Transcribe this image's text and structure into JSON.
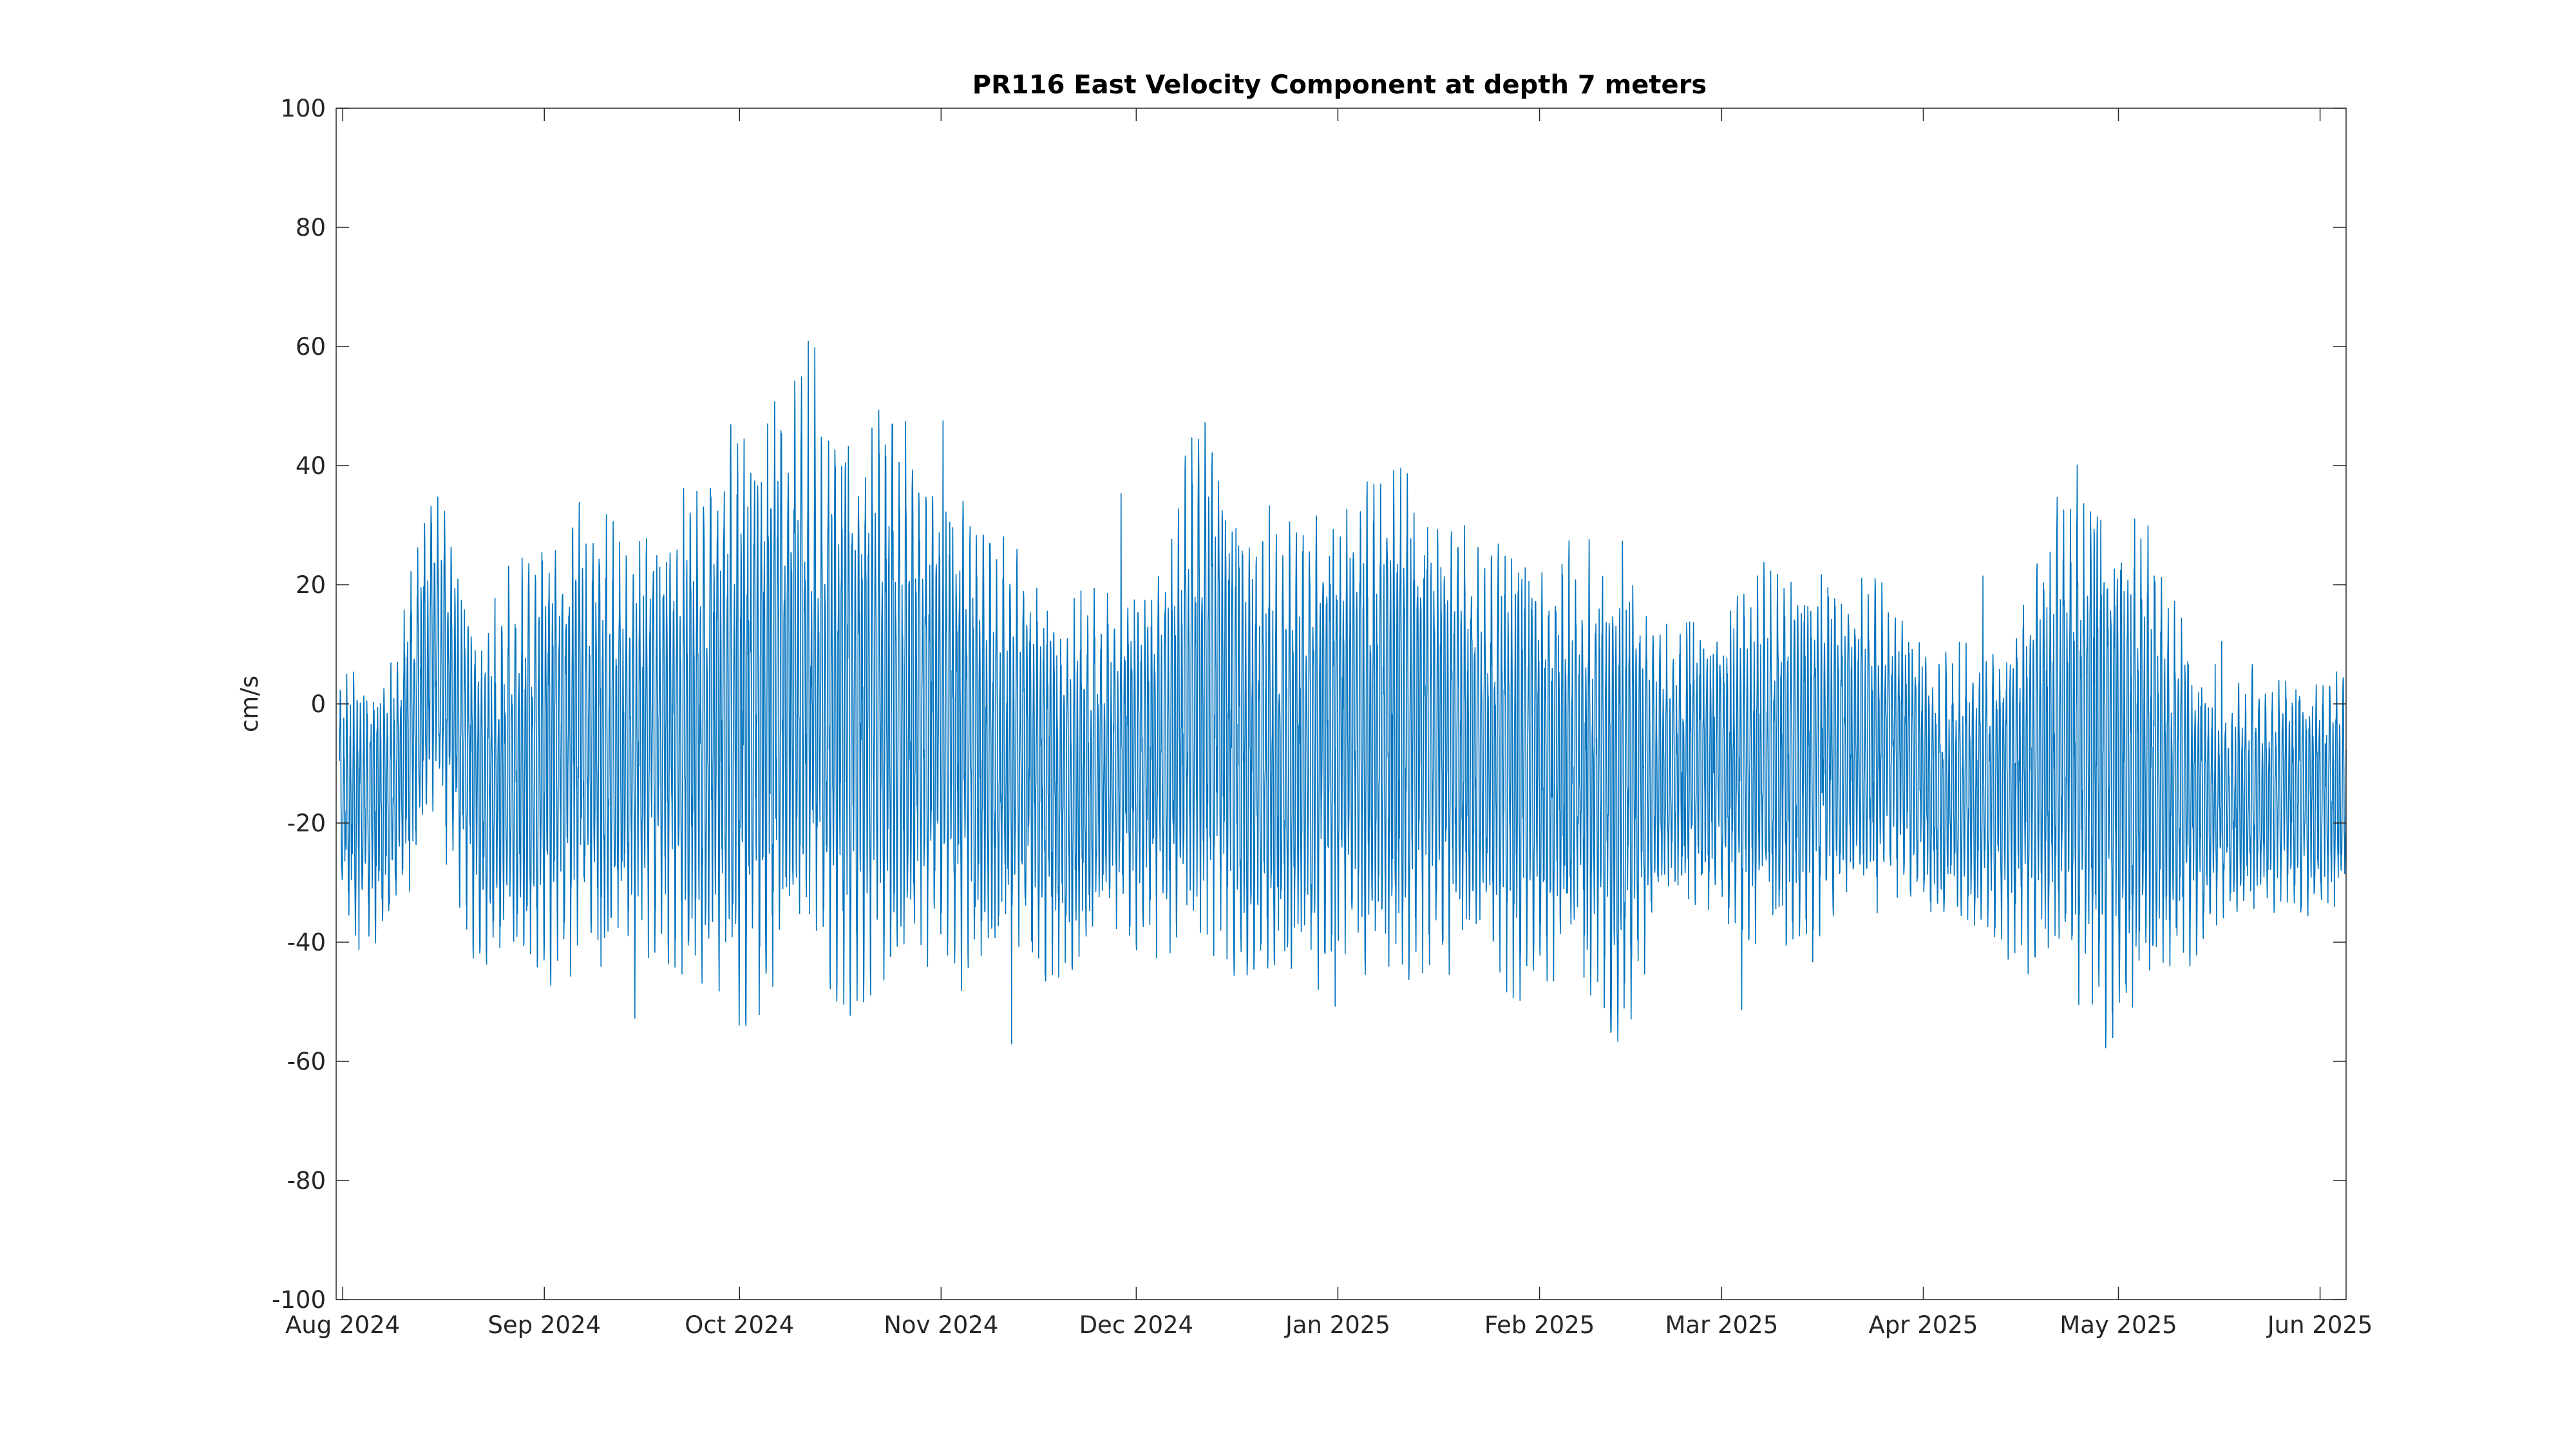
{
  "chart_data": {
    "type": "line",
    "title": "PR116 East Velocity Component at depth 7 meters",
    "xlabel": "",
    "ylabel": "cm/s",
    "xlim": [
      "2024-07-31",
      "2025-06-05"
    ],
    "ylim": [
      -100,
      100
    ],
    "grid": false,
    "legend": "none",
    "line_color": "#0072BD",
    "y_ticks": [
      -100,
      -80,
      -60,
      -40,
      -20,
      0,
      20,
      40,
      60,
      80,
      100
    ],
    "y_tick_labels": [
      "-100",
      "-80",
      "-60",
      "-40",
      "-20",
      "0",
      "20",
      "40",
      "60",
      "80",
      "100"
    ],
    "x_ticks": [
      "2024-08-01",
      "2024-09-01",
      "2024-10-01",
      "2024-11-01",
      "2024-12-01",
      "2025-01-01",
      "2025-02-01",
      "2025-03-01",
      "2025-04-01",
      "2025-05-01",
      "2025-06-01"
    ],
    "x_tick_labels": [
      "Aug 2024",
      "Sep 2024",
      "Oct 2024",
      "Nov 2024",
      "Dec 2024",
      "Jan 2025",
      "Feb 2025",
      "Mar 2025",
      "Apr 2025",
      "May 2025",
      "Jun 2025"
    ],
    "series": [
      {
        "x": [
          "2024-08-01",
          "2024-08-08",
          "2024-08-15",
          "2024-08-22",
          "2024-08-29",
          "2024-09-05",
          "2024-09-12",
          "2024-09-19",
          "2024-09-26",
          "2024-10-03",
          "2024-10-10",
          "2024-10-17",
          "2024-10-24",
          "2024-10-31",
          "2024-11-07",
          "2024-11-14",
          "2024-11-21",
          "2024-11-28",
          "2024-12-05",
          "2024-12-12",
          "2024-12-19",
          "2024-12-26",
          "2025-01-02",
          "2025-01-09",
          "2025-01-16",
          "2025-01-23",
          "2025-01-30",
          "2025-02-06",
          "2025-02-13",
          "2025-02-20",
          "2025-02-27",
          "2025-03-06",
          "2025-03-13",
          "2025-03-20",
          "2025-03-27",
          "2025-04-03",
          "2025-04-10",
          "2025-04-17",
          "2025-04-24",
          "2025-05-01",
          "2025-05-08",
          "2025-05-15",
          "2025-05-22",
          "2025-05-29",
          "2025-06-05"
        ],
        "mean": [
          -15,
          -18,
          10,
          -15,
          -10,
          -5,
          -8,
          -5,
          -5,
          0,
          5,
          0,
          0,
          -2,
          -8,
          -10,
          -15,
          -10,
          -8,
          5,
          -10,
          -8,
          -5,
          -3,
          -5,
          -8,
          -10,
          -10,
          -15,
          -12,
          -10,
          -10,
          -8,
          -8,
          -5,
          -15,
          -15,
          -12,
          -5,
          -10,
          -12,
          -18,
          -15,
          -15,
          -15
        ],
        "amp": [
          18,
          20,
          25,
          25,
          30,
          35,
          32,
          30,
          40,
          45,
          40,
          45,
          42,
          35,
          35,
          30,
          28,
          25,
          30,
          40,
          35,
          35,
          35,
          38,
          35,
          30,
          35,
          30,
          38,
          20,
          22,
          28,
          30,
          25,
          22,
          20,
          20,
          28,
          38,
          40,
          30,
          18,
          18,
          18,
          18
        ]
      }
    ]
  }
}
